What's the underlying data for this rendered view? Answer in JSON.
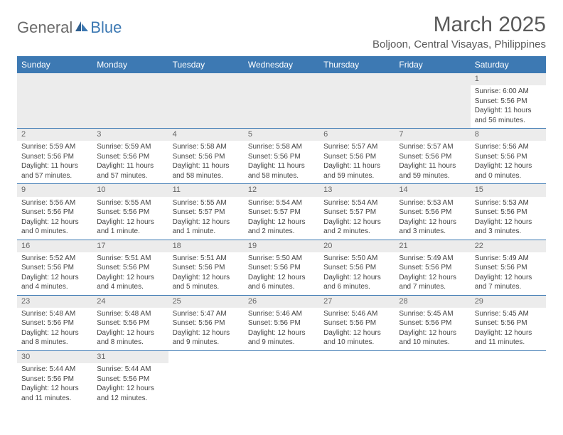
{
  "logo": {
    "text1": "General",
    "text2": "Blue"
  },
  "title": "March 2025",
  "location": "Boljoon, Central Visayas, Philippines",
  "colors": {
    "header_bg": "#3d79b3",
    "header_text": "#ffffff",
    "daynum_bg": "#ececec",
    "text": "#444444",
    "title_text": "#5a5a5a",
    "border": "#3d79b3"
  },
  "dayNames": [
    "Sunday",
    "Monday",
    "Tuesday",
    "Wednesday",
    "Thursday",
    "Friday",
    "Saturday"
  ],
  "weeks": [
    [
      null,
      null,
      null,
      null,
      null,
      null,
      {
        "n": "1",
        "sunrise": "6:00 AM",
        "sunset": "5:56 PM",
        "daylight": "11 hours and 56 minutes."
      }
    ],
    [
      {
        "n": "2",
        "sunrise": "5:59 AM",
        "sunset": "5:56 PM",
        "daylight": "11 hours and 57 minutes."
      },
      {
        "n": "3",
        "sunrise": "5:59 AM",
        "sunset": "5:56 PM",
        "daylight": "11 hours and 57 minutes."
      },
      {
        "n": "4",
        "sunrise": "5:58 AM",
        "sunset": "5:56 PM",
        "daylight": "11 hours and 58 minutes."
      },
      {
        "n": "5",
        "sunrise": "5:58 AM",
        "sunset": "5:56 PM",
        "daylight": "11 hours and 58 minutes."
      },
      {
        "n": "6",
        "sunrise": "5:57 AM",
        "sunset": "5:56 PM",
        "daylight": "11 hours and 59 minutes."
      },
      {
        "n": "7",
        "sunrise": "5:57 AM",
        "sunset": "5:56 PM",
        "daylight": "11 hours and 59 minutes."
      },
      {
        "n": "8",
        "sunrise": "5:56 AM",
        "sunset": "5:56 PM",
        "daylight": "12 hours and 0 minutes."
      }
    ],
    [
      {
        "n": "9",
        "sunrise": "5:56 AM",
        "sunset": "5:56 PM",
        "daylight": "12 hours and 0 minutes."
      },
      {
        "n": "10",
        "sunrise": "5:55 AM",
        "sunset": "5:56 PM",
        "daylight": "12 hours and 1 minute."
      },
      {
        "n": "11",
        "sunrise": "5:55 AM",
        "sunset": "5:57 PM",
        "daylight": "12 hours and 1 minute."
      },
      {
        "n": "12",
        "sunrise": "5:54 AM",
        "sunset": "5:57 PM",
        "daylight": "12 hours and 2 minutes."
      },
      {
        "n": "13",
        "sunrise": "5:54 AM",
        "sunset": "5:57 PM",
        "daylight": "12 hours and 2 minutes."
      },
      {
        "n": "14",
        "sunrise": "5:53 AM",
        "sunset": "5:56 PM",
        "daylight": "12 hours and 3 minutes."
      },
      {
        "n": "15",
        "sunrise": "5:53 AM",
        "sunset": "5:56 PM",
        "daylight": "12 hours and 3 minutes."
      }
    ],
    [
      {
        "n": "16",
        "sunrise": "5:52 AM",
        "sunset": "5:56 PM",
        "daylight": "12 hours and 4 minutes."
      },
      {
        "n": "17",
        "sunrise": "5:51 AM",
        "sunset": "5:56 PM",
        "daylight": "12 hours and 4 minutes."
      },
      {
        "n": "18",
        "sunrise": "5:51 AM",
        "sunset": "5:56 PM",
        "daylight": "12 hours and 5 minutes."
      },
      {
        "n": "19",
        "sunrise": "5:50 AM",
        "sunset": "5:56 PM",
        "daylight": "12 hours and 6 minutes."
      },
      {
        "n": "20",
        "sunrise": "5:50 AM",
        "sunset": "5:56 PM",
        "daylight": "12 hours and 6 minutes."
      },
      {
        "n": "21",
        "sunrise": "5:49 AM",
        "sunset": "5:56 PM",
        "daylight": "12 hours and 7 minutes."
      },
      {
        "n": "22",
        "sunrise": "5:49 AM",
        "sunset": "5:56 PM",
        "daylight": "12 hours and 7 minutes."
      }
    ],
    [
      {
        "n": "23",
        "sunrise": "5:48 AM",
        "sunset": "5:56 PM",
        "daylight": "12 hours and 8 minutes."
      },
      {
        "n": "24",
        "sunrise": "5:48 AM",
        "sunset": "5:56 PM",
        "daylight": "12 hours and 8 minutes."
      },
      {
        "n": "25",
        "sunrise": "5:47 AM",
        "sunset": "5:56 PM",
        "daylight": "12 hours and 9 minutes."
      },
      {
        "n": "26",
        "sunrise": "5:46 AM",
        "sunset": "5:56 PM",
        "daylight": "12 hours and 9 minutes."
      },
      {
        "n": "27",
        "sunrise": "5:46 AM",
        "sunset": "5:56 PM",
        "daylight": "12 hours and 10 minutes."
      },
      {
        "n": "28",
        "sunrise": "5:45 AM",
        "sunset": "5:56 PM",
        "daylight": "12 hours and 10 minutes."
      },
      {
        "n": "29",
        "sunrise": "5:45 AM",
        "sunset": "5:56 PM",
        "daylight": "12 hours and 11 minutes."
      }
    ],
    [
      {
        "n": "30",
        "sunrise": "5:44 AM",
        "sunset": "5:56 PM",
        "daylight": "12 hours and 11 minutes."
      },
      {
        "n": "31",
        "sunrise": "5:44 AM",
        "sunset": "5:56 PM",
        "daylight": "12 hours and 12 minutes."
      },
      null,
      null,
      null,
      null,
      null
    ]
  ],
  "labels": {
    "sunrise": "Sunrise: ",
    "sunset": "Sunset: ",
    "daylight": "Daylight: "
  }
}
